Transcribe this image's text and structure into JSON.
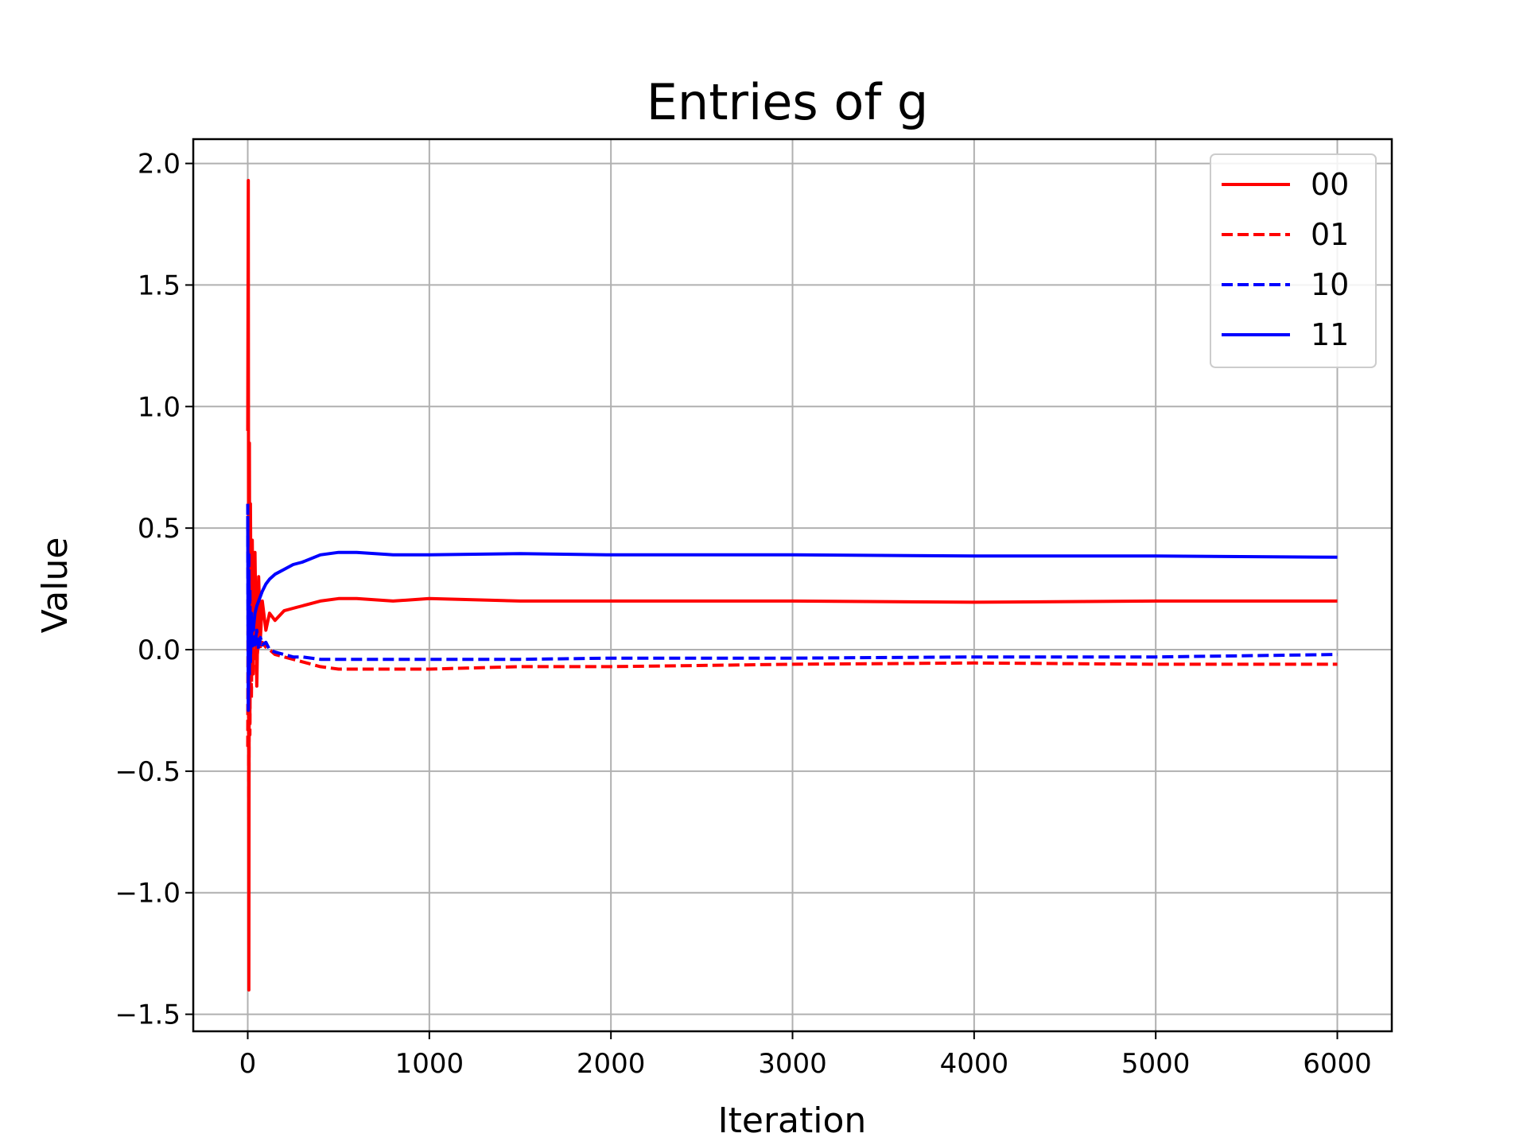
{
  "chart_data": {
    "type": "line",
    "title": "Entries of g",
    "xlabel": "Iteration",
    "ylabel": "Value",
    "xlim": [
      -300,
      6300
    ],
    "ylim": [
      -1.57,
      2.1
    ],
    "grid": true,
    "legend_position": "upper-right",
    "x_ticks": [
      0,
      1000,
      2000,
      3000,
      4000,
      5000,
      6000
    ],
    "x_tick_labels": [
      "0",
      "1000",
      "2000",
      "3000",
      "4000",
      "5000",
      "6000"
    ],
    "y_ticks": [
      -1.5,
      -1.0,
      -0.5,
      0.0,
      0.5,
      1.0,
      1.5,
      2.0
    ],
    "y_tick_labels": [
      "−1.5",
      "−1.0",
      "−0.5",
      "0.0",
      "0.5",
      "1.0",
      "1.5",
      "2.0"
    ],
    "series": [
      {
        "name": "00",
        "color": "#ff0000",
        "dash": "solid",
        "x": [
          0,
          3,
          6,
          9,
          12,
          15,
          20,
          25,
          30,
          40,
          50,
          60,
          70,
          80,
          100,
          120,
          150,
          200,
          250,
          300,
          400,
          500,
          600,
          800,
          1000,
          1500,
          2000,
          3000,
          4000,
          5000,
          6000
        ],
        "y": [
          0.9,
          1.93,
          -1.4,
          0.85,
          -0.3,
          0.6,
          -0.1,
          0.45,
          0.02,
          0.4,
          -0.15,
          0.3,
          0.05,
          0.2,
          0.08,
          0.15,
          0.12,
          0.16,
          0.17,
          0.18,
          0.2,
          0.21,
          0.21,
          0.2,
          0.21,
          0.2,
          0.2,
          0.2,
          0.195,
          0.2,
          0.2
        ]
      },
      {
        "name": "01",
        "color": "#ff0000",
        "dash": "dashed",
        "x": [
          0,
          3,
          6,
          9,
          12,
          15,
          20,
          25,
          30,
          40,
          50,
          60,
          70,
          80,
          100,
          120,
          150,
          200,
          250,
          300,
          400,
          500,
          600,
          800,
          1000,
          1500,
          2000,
          3000,
          4000,
          5000,
          6000
        ],
        "y": [
          -0.4,
          0.5,
          -0.7,
          0.4,
          -0.35,
          0.3,
          -0.2,
          0.15,
          -0.1,
          0.1,
          -0.05,
          0.05,
          0.0,
          0.03,
          0.01,
          0.0,
          -0.02,
          -0.03,
          -0.04,
          -0.05,
          -0.07,
          -0.08,
          -0.08,
          -0.08,
          -0.08,
          -0.07,
          -0.07,
          -0.06,
          -0.055,
          -0.06,
          -0.06
        ]
      },
      {
        "name": "10",
        "color": "#0000ff",
        "dash": "dashed",
        "x": [
          0,
          3,
          6,
          9,
          12,
          15,
          20,
          25,
          30,
          40,
          50,
          60,
          70,
          80,
          100,
          120,
          150,
          200,
          250,
          300,
          400,
          500,
          600,
          800,
          1000,
          1500,
          2000,
          3000,
          4000,
          5000,
          6000
        ],
        "y": [
          0.6,
          -0.25,
          0.4,
          -0.1,
          0.25,
          -0.05,
          0.15,
          0.0,
          0.1,
          0.02,
          0.08,
          0.0,
          0.05,
          0.02,
          0.03,
          0.0,
          -0.01,
          -0.02,
          -0.03,
          -0.03,
          -0.04,
          -0.04,
          -0.04,
          -0.04,
          -0.04,
          -0.04,
          -0.035,
          -0.035,
          -0.03,
          -0.03,
          -0.02
        ]
      },
      {
        "name": "11",
        "color": "#0000ff",
        "dash": "solid",
        "x": [
          0,
          3,
          6,
          9,
          12,
          15,
          20,
          25,
          30,
          40,
          50,
          60,
          70,
          80,
          100,
          120,
          150,
          200,
          250,
          300,
          400,
          500,
          600,
          800,
          1000,
          1500,
          2000,
          3000,
          4000,
          5000,
          6000
        ],
        "y": [
          0.55,
          -0.25,
          0.3,
          -0.05,
          0.1,
          0.0,
          0.05,
          0.1,
          0.08,
          0.15,
          0.18,
          0.2,
          0.22,
          0.24,
          0.27,
          0.29,
          0.31,
          0.33,
          0.35,
          0.36,
          0.39,
          0.4,
          0.4,
          0.39,
          0.39,
          0.395,
          0.39,
          0.39,
          0.385,
          0.385,
          0.38
        ]
      }
    ]
  }
}
